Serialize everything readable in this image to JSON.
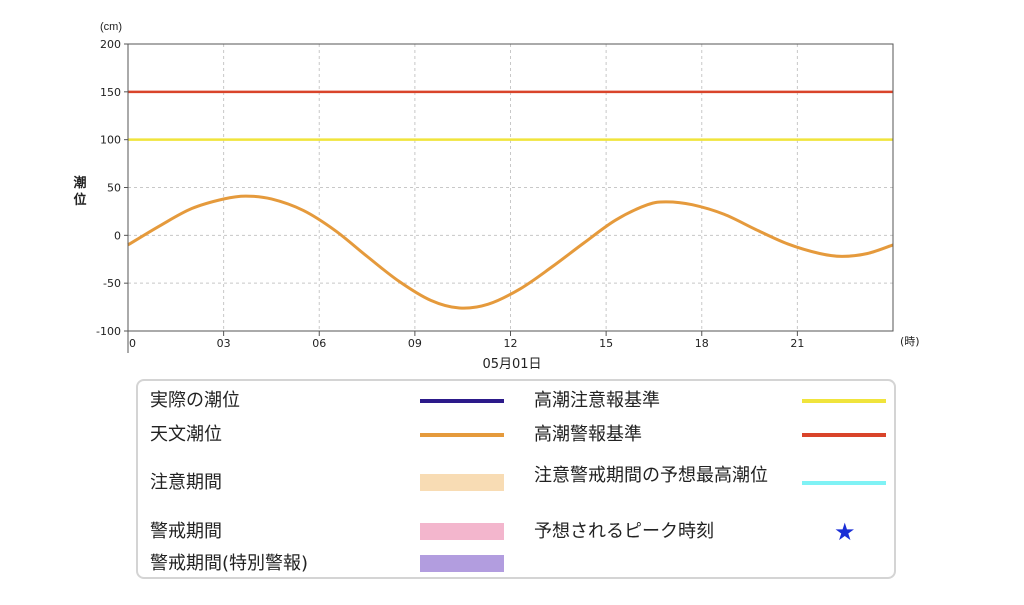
{
  "chart_data": {
    "type": "line",
    "yunit": "(cm)",
    "ylabel": "潮位",
    "xunit": "(時)",
    "date_label": "05月01日",
    "xlim": [
      0,
      24
    ],
    "ylim": [
      -100,
      200
    ],
    "yticks": [
      -100,
      -50,
      0,
      50,
      100,
      150,
      200
    ],
    "xticks": [
      0,
      3,
      6,
      9,
      12,
      15,
      18,
      21
    ],
    "xtick_labels": [
      "0",
      "03",
      "06",
      "09",
      "12",
      "15",
      "18",
      "21"
    ],
    "grid": true,
    "thresholds": [
      {
        "name": "高潮警報基準",
        "value": 150,
        "color": "#d9442a"
      },
      {
        "name": "高潮注意報基準",
        "value": 100,
        "color": "#f0e43c"
      }
    ],
    "series": [
      {
        "name": "天文潮位",
        "color": "#e59a3c",
        "x": [
          0,
          1,
          2,
          3,
          3.7,
          4.5,
          5.5,
          6.5,
          7.5,
          8.5,
          9.5,
          10.4,
          11.3,
          12.3,
          13.3,
          14.3,
          15.3,
          16.3,
          16.9,
          17.7,
          18.7,
          19.7,
          20.7,
          21.7,
          22.4,
          23.2,
          24
        ],
        "y": [
          -10,
          10,
          28,
          38,
          41,
          38,
          26,
          5,
          -22,
          -48,
          -68,
          -76,
          -72,
          -56,
          -33,
          -8,
          16,
          32,
          35,
          32,
          22,
          6,
          -9,
          -19,
          -22,
          -19,
          -10
        ]
      }
    ]
  },
  "legend": {
    "items": [
      {
        "label": "実際の潮位",
        "kind": "line",
        "color": "#2c1a8a"
      },
      {
        "label": "天文潮位",
        "kind": "line",
        "color": "#e59a3c"
      },
      {
        "label": "注意期間",
        "kind": "band",
        "color": "#f8dcb4"
      },
      {
        "label": "警戒期間",
        "kind": "band",
        "color": "#f3b6cd"
      },
      {
        "label": "警戒期間(特別警報)",
        "kind": "band",
        "color": "#b29ddf"
      },
      {
        "label": "高潮注意報基準",
        "kind": "line",
        "color": "#f0e43c"
      },
      {
        "label": "高潮警報基準",
        "kind": "line",
        "color": "#d9442a"
      },
      {
        "label": "注意警戒期間の予想最高潮位",
        "kind": "line",
        "color": "#7ff2f5"
      },
      {
        "label": "予想されるピーク時刻",
        "kind": "star",
        "color": "#1a2ed6",
        "symbol": "★"
      }
    ]
  }
}
